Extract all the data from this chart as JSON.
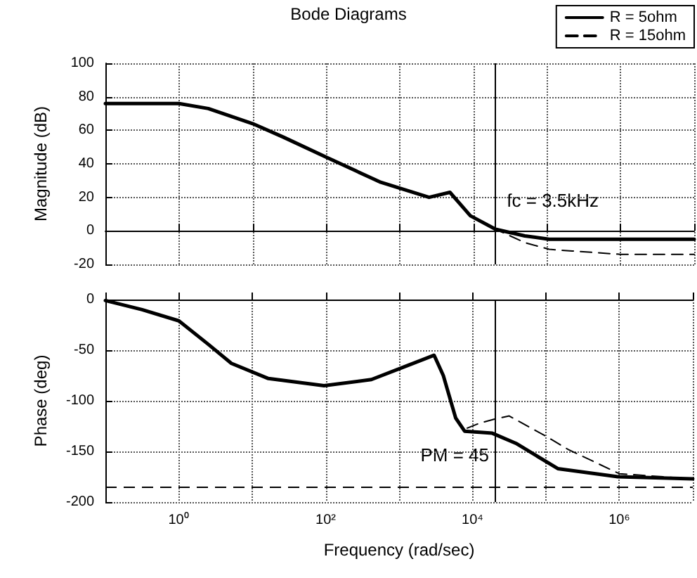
{
  "chart_data": [
    {
      "type": "line",
      "title": "Bode Diagrams",
      "ylabel": "Magnitude (dB)",
      "log": "x",
      "grid": true,
      "legend": "top right",
      "tick_labels": "y",
      "xlim": [
        0.1,
        10000000
      ],
      "xticks": [
        0.1,
        1,
        10,
        100,
        1000,
        10000,
        100000,
        1000000,
        10000000
      ],
      "ylim": [
        -20,
        100
      ],
      "yticks": [
        -20,
        0,
        20,
        40,
        60,
        80,
        100
      ],
      "series": [
        {
          "name": "R = 5ohm",
          "color": "#000000",
          "line_style": "solid",
          "x": [
            0.1,
            1,
            2.5,
            10,
            26,
            100,
            550,
            2500,
            4800,
            9100,
            20000,
            50000,
            107000,
            220000,
            1000000,
            10000000
          ],
          "values": [
            76,
            76,
            73,
            64,
            56,
            44,
            29,
            20,
            23,
            9,
            1,
            -3,
            -5,
            -5,
            -5,
            -5
          ]
        },
        {
          "name": "R = 15ohm",
          "color": "#000000",
          "line_style": "dashed",
          "x": [
            0.1,
            1,
            2.5,
            10,
            26,
            100,
            550,
            2500,
            4800,
            9100,
            20000,
            50000,
            107000,
            220000,
            1000000,
            10000000
          ],
          "values": [
            76,
            76,
            73,
            64,
            56,
            44,
            29,
            20,
            23,
            9,
            1,
            -7,
            -11,
            -12,
            -14,
            -14
          ]
        }
      ],
      "ref_lines": [
        {
          "axis": "x",
          "value": 20000
        }
      ],
      "annotations": [
        "fc = 3.5kHz"
      ]
    },
    {
      "type": "line",
      "xlabel": "Frequency (rad/sec)",
      "ylabel": "Phase (deg)",
      "log": "x",
      "grid": true,
      "legend": false,
      "xlim": [
        0.1,
        10000000
      ],
      "xticks": [
        {
          "value": 0.1,
          "label": null
        },
        {
          "value": 1,
          "label": "10⁰"
        },
        {
          "value": 10,
          "label": null
        },
        {
          "value": 100,
          "label": "10²"
        },
        {
          "value": 1000,
          "label": null
        },
        {
          "value": 10000,
          "label": "10⁴"
        },
        {
          "value": 100000,
          "label": null
        },
        {
          "value": 1000000,
          "label": "10⁶"
        },
        {
          "value": 10000000,
          "label": null
        }
      ],
      "ylim": [
        -200,
        0
      ],
      "yticks": [
        -200,
        -150,
        -100,
        -50,
        0
      ],
      "series": [
        {
          "color": "#000000",
          "line_style": "solid",
          "x": [
            0.1,
            0.316,
            1,
            2.5,
            5.2,
            16.6,
            95,
            420,
            1320,
            3000,
            4000,
            5900,
            7800,
            18600,
            39000,
            145000,
            955000,
            10000000
          ],
          "values": [
            -1,
            -10,
            -21,
            -44,
            -63,
            -78,
            -85,
            -79,
            -65,
            -55,
            -75,
            -117,
            -130,
            -132,
            -142,
            -167,
            -175,
            -177
          ]
        },
        {
          "color": "#000000",
          "line_style": "dashed",
          "x": [
            0.1,
            0.316,
            1,
            2.5,
            5.2,
            16.6,
            95,
            420,
            1320,
            3000,
            4000,
            5900,
            7800,
            12600,
            20000,
            31600,
            100000,
            200000,
            1000000,
            10000000
          ],
          "values": [
            -1,
            -10,
            -21,
            -44,
            -63,
            -78,
            -85,
            -79,
            -65,
            -55,
            -75,
            -117,
            -128,
            -122,
            -118,
            -115,
            -135,
            -148,
            -172,
            -177
          ]
        }
      ],
      "ref_lines": [
        {
          "axis": "x",
          "value": 20000
        },
        {
          "axis": "y",
          "value": -185,
          "line_style": "dashed"
        }
      ],
      "annotations": [
        "PM = 45"
      ]
    }
  ]
}
